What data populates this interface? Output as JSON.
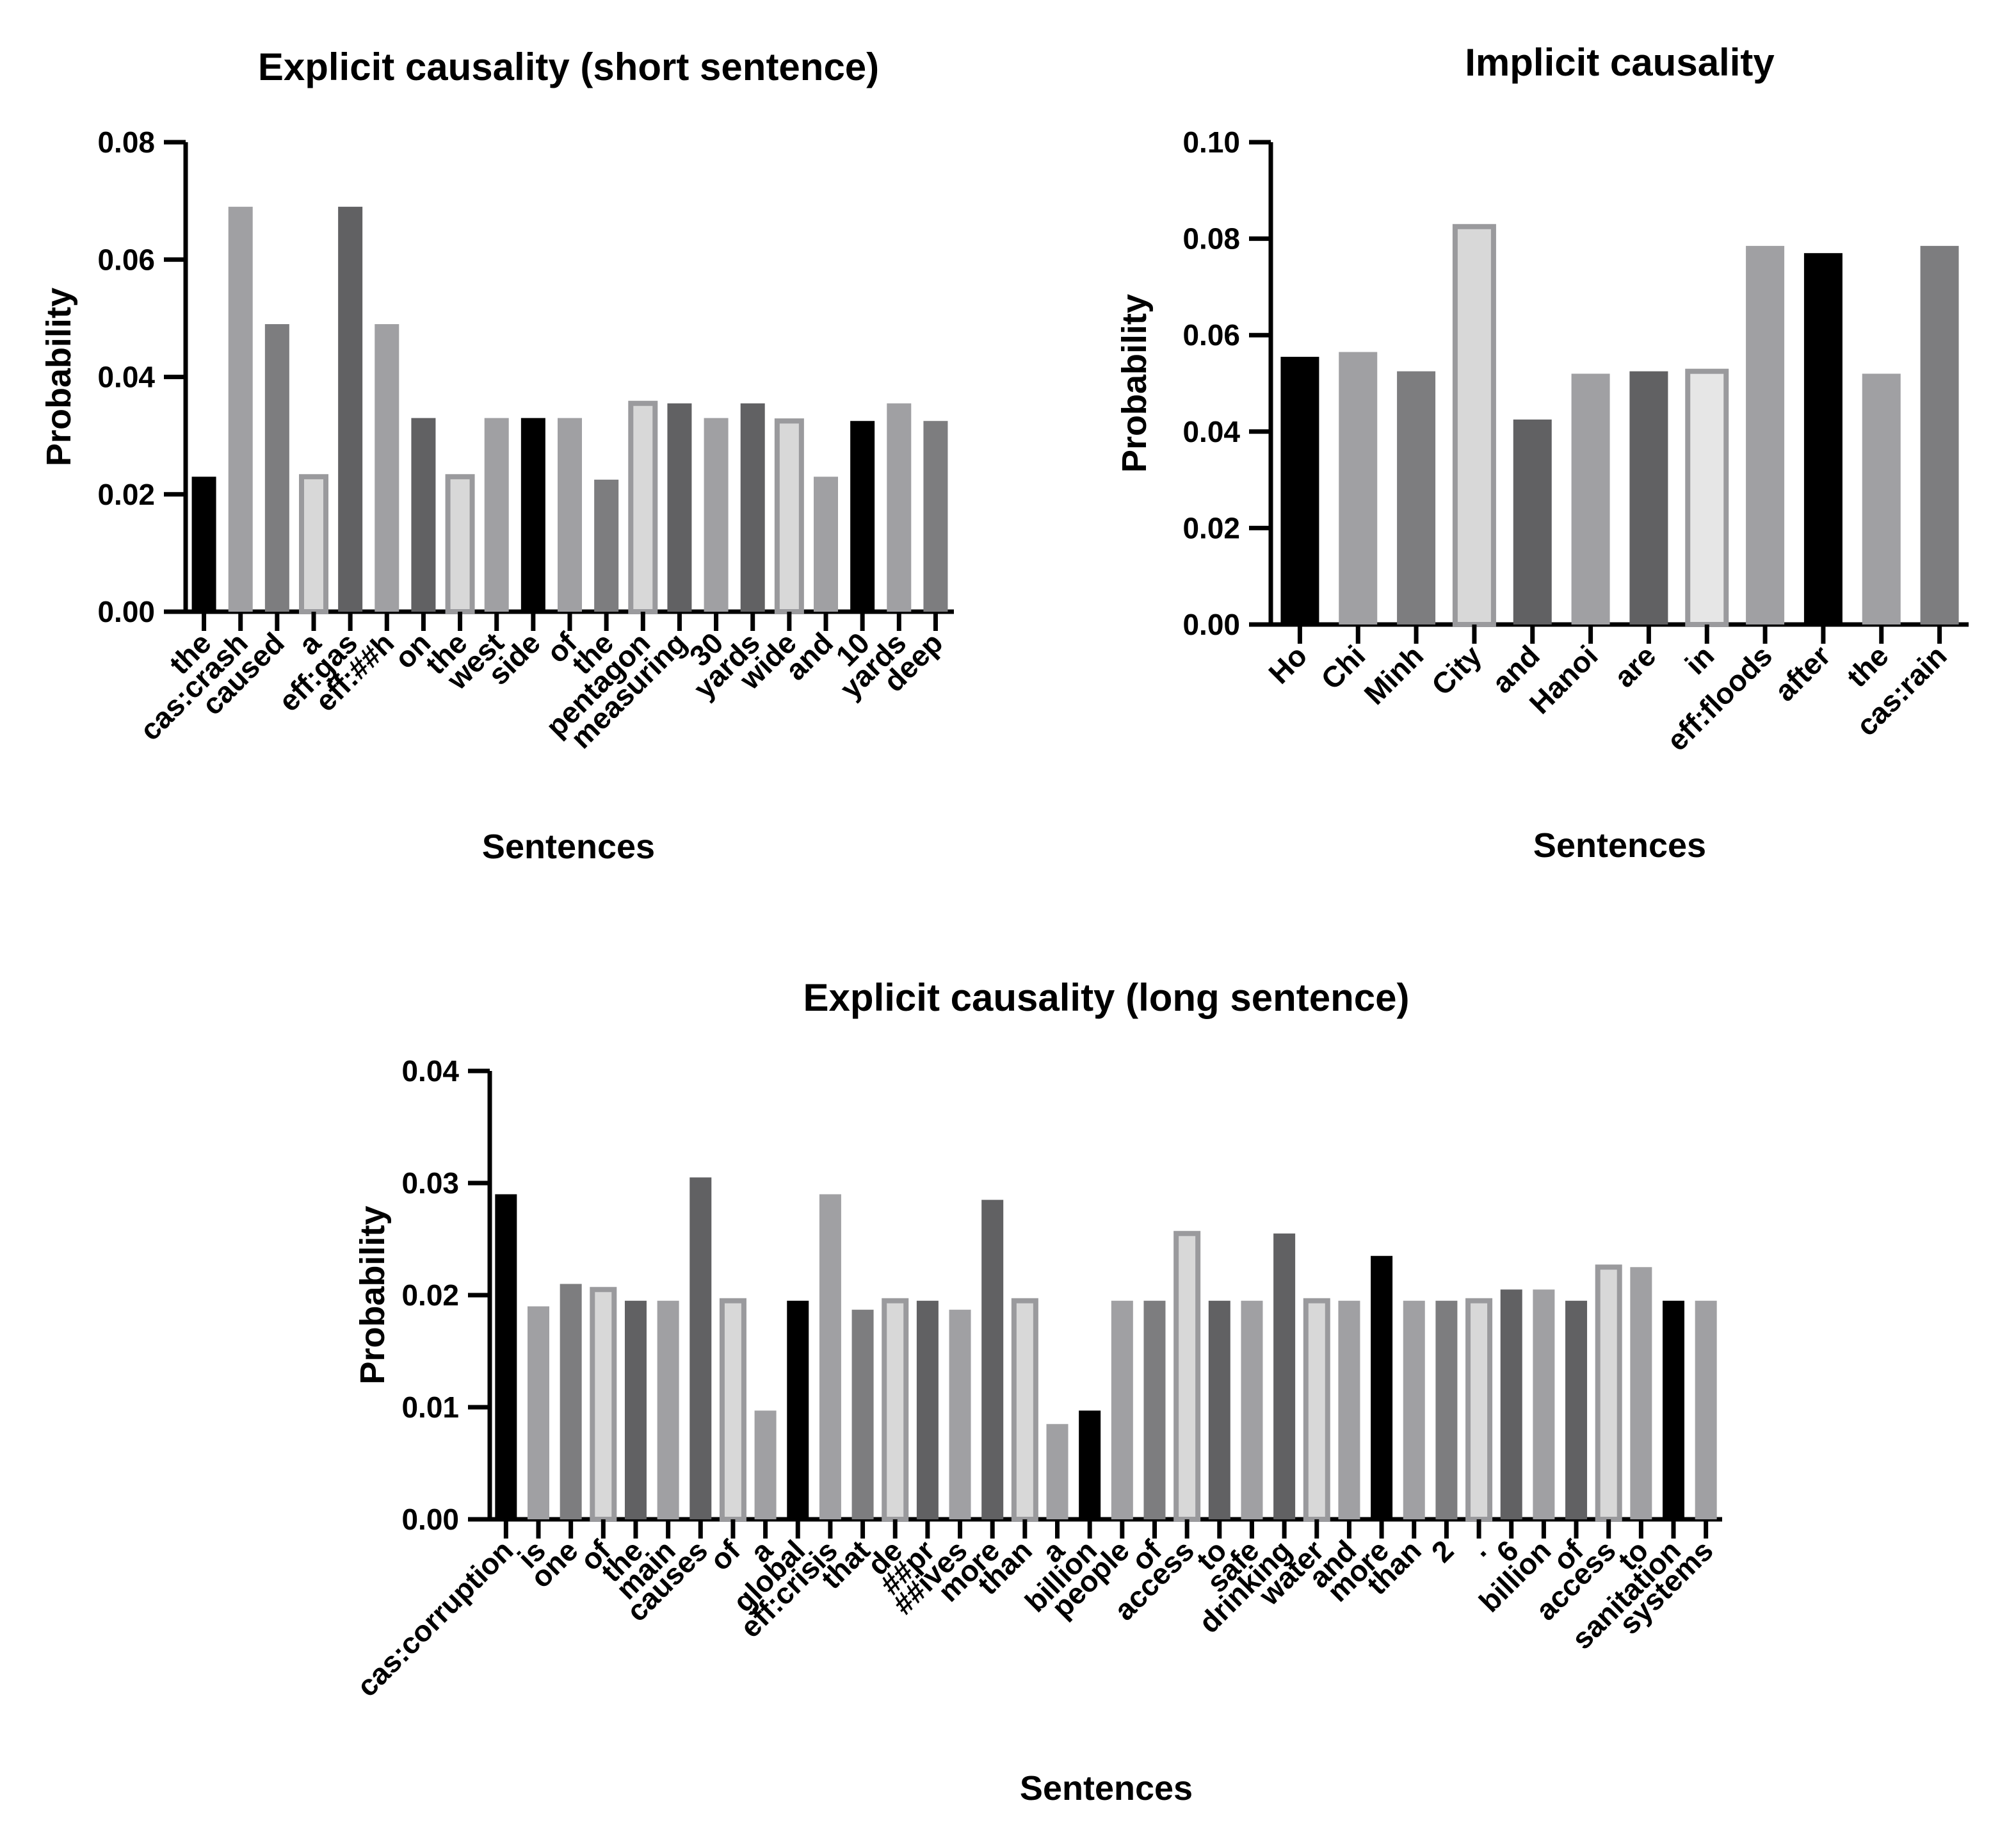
{
  "chart_data": [
    {
      "id": "short",
      "type": "bar",
      "title": "Explicit causality (short sentence)",
      "xlabel": "Sentences",
      "ylabel": "Probability",
      "ylim": [
        0,
        0.08
      ],
      "yticks": [
        "0.00",
        "0.02",
        "0.04",
        "0.06",
        "0.08"
      ],
      "categories": [
        "the",
        "cas:crash",
        "caused",
        "a",
        "eff:gas",
        "eff:##h",
        "on",
        "the",
        "west",
        "side",
        "of",
        "the",
        "pentagon",
        "measuring",
        "30",
        "yards",
        "wide",
        "and",
        "10",
        "yards",
        "deep"
      ],
      "values": [
        0.023,
        0.069,
        0.049,
        0.023,
        0.069,
        0.049,
        0.033,
        0.023,
        0.033,
        0.033,
        0.033,
        0.0225,
        0.0355,
        0.0355,
        0.033,
        0.0355,
        0.0325,
        0.023,
        0.0325,
        0.0355,
        0.0325
      ],
      "colors": [
        "#000000",
        "#a0a0a3",
        "#7d7d7f",
        "#d8d8d8",
        "#616163",
        "#a0a0a3",
        "#616163",
        "#d8d8d8",
        "#a0a0a3",
        "#000000",
        "#a0a0a3",
        "#7d7d7f",
        "#d8d8d8",
        "#616163",
        "#a0a0a3",
        "#616163",
        "#d8d8d8",
        "#a0a0a3",
        "#000000",
        "#a0a0a3",
        "#7d7d7f"
      ]
    },
    {
      "id": "implicit",
      "type": "bar",
      "title": "Implicit causality",
      "xlabel": "Sentences",
      "ylabel": "Probability",
      "ylim": [
        0,
        0.1
      ],
      "yticks": [
        "0.00",
        "0.02",
        "0.04",
        "0.06",
        "0.08",
        "0.10"
      ],
      "categories": [
        "Ho",
        "Chi",
        "Minh",
        "City",
        "and",
        "Hanoi",
        "are",
        "in",
        "eff:floods",
        "after",
        "the",
        "cas:rain"
      ],
      "values": [
        0.0555,
        0.0565,
        0.0525,
        0.0825,
        0.0425,
        0.052,
        0.0525,
        0.0525,
        0.0785,
        0.077,
        0.052,
        0.0785
      ],
      "colors": [
        "#000000",
        "#a0a0a3",
        "#7d7d7f",
        "#d8d8d8",
        "#616163",
        "#a0a0a3",
        "#616163",
        "#e6e6e6",
        "#a0a0a3",
        "#000000",
        "#a0a0a3",
        "#7d7d7f"
      ]
    },
    {
      "id": "long",
      "type": "bar",
      "title": "Explicit causality (long sentence)",
      "xlabel": "Sentences",
      "ylabel": "Probability",
      "ylim": [
        0,
        0.04
      ],
      "yticks": [
        "0.00",
        "0.01",
        "0.02",
        "0.03",
        "0.04"
      ],
      "categories": [
        "cas:corruption",
        "is",
        "one",
        "of",
        "the",
        "main",
        "causes",
        "of",
        "a",
        "global",
        "eff:crisis",
        "that",
        "de",
        "##pr",
        "##ives",
        "more",
        "than",
        "a",
        "billion",
        "people",
        "of",
        "access",
        "to",
        "safe",
        "drinking",
        "water",
        "and",
        "more",
        "than",
        "2",
        ".",
        "6",
        "billion",
        "of",
        "access",
        "to",
        "sanitation",
        "systems"
      ],
      "values": [
        0.029,
        0.019,
        0.021,
        0.0205,
        0.0195,
        0.0195,
        0.0305,
        0.0195,
        0.0097,
        0.0195,
        0.029,
        0.0187,
        0.0195,
        0.0195,
        0.0187,
        0.0285,
        0.0195,
        0.0085,
        0.0097,
        0.0195,
        0.0195,
        0.0255,
        0.0195,
        0.0195,
        0.0255,
        0.0195,
        0.0195,
        0.0235,
        0.0195,
        0.0195,
        0.0195,
        0.0205,
        0.0205,
        0.0195,
        0.0225,
        0.0225,
        0.0195,
        0.0195
      ],
      "colors": [
        "#000000",
        "#a0a0a3",
        "#7d7d7f",
        "#d8d8d8",
        "#616163",
        "#a0a0a3",
        "#616163",
        "#d8d8d8",
        "#a0a0a3",
        "#000000",
        "#a0a0a3",
        "#7d7d7f",
        "#d8d8d8",
        "#616163",
        "#a0a0a3",
        "#616163",
        "#d8d8d8",
        "#a0a0a3",
        "#000000",
        "#a0a0a3",
        "#7d7d7f",
        "#d8d8d8",
        "#616163",
        "#a0a0a3",
        "#616163",
        "#d8d8d8",
        "#a0a0a3",
        "#000000",
        "#a0a0a3",
        "#7d7d7f",
        "#d8d8d8",
        "#616163",
        "#a0a0a3",
        "#616163",
        "#d8d8d8",
        "#a0a0a3",
        "#000000",
        "#a0a0a3"
      ]
    }
  ]
}
